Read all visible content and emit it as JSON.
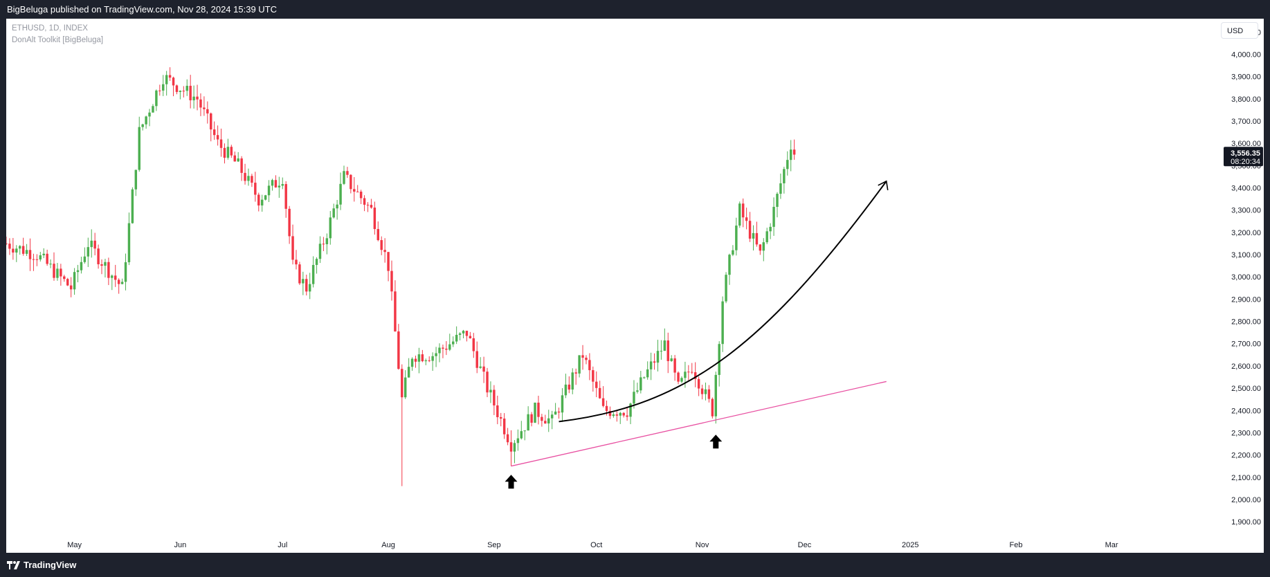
{
  "header": {
    "published": "BigBeluga published on TradingView.com, Nov 28, 2024 15:39 UTC"
  },
  "legend": {
    "symbol": "ETHUSD, 1D, INDEX",
    "indicator": "DonAlt Toolkit [BigBeluga]"
  },
  "currency": "USD",
  "footer": {
    "brand": "TradingView"
  },
  "colors": {
    "up": "#26a69a",
    "up_candle": "#4caf50",
    "down": "#f23645",
    "trendline": "#e84fa1",
    "arrow": "#000000",
    "price_tag": "#131722"
  },
  "chart_data": {
    "type": "candlestick",
    "symbol": "ETHUSD",
    "timeframe": "1D",
    "ylim": [
      1860,
      4160
    ],
    "y_ticks": [
      1900,
      2000,
      2100,
      2200,
      2300,
      2400,
      2500,
      2600,
      2700,
      2800,
      2900,
      3000,
      3100,
      3200,
      3300,
      3400,
      3500,
      3600,
      3700,
      3800,
      3900,
      4000,
      4100
    ],
    "y_tick_labels": [
      "1,900.00",
      "2,000.00",
      "2,100.00",
      "2,200.00",
      "2,300.00",
      "2,400.00",
      "2,500.00",
      "2,600.00",
      "2,700.00",
      "2,800.00",
      "2,900.00",
      "3,000.00",
      "3,100.00",
      "3,200.00",
      "3,300.00",
      "3,400.00",
      "3,500.00",
      "3,600.00",
      "3,700.00",
      "3,800.00",
      "3,900.00",
      "4,000.00",
      "4,100.00"
    ],
    "x_labels": [
      {
        "label": "May",
        "date": "2024-05-01"
      },
      {
        "label": "Jun",
        "date": "2024-06-01"
      },
      {
        "label": "Jul",
        "date": "2024-07-01"
      },
      {
        "label": "Aug",
        "date": "2024-08-01"
      },
      {
        "label": "Sep",
        "date": "2024-09-01"
      },
      {
        "label": "Oct",
        "date": "2024-10-01"
      },
      {
        "label": "Nov",
        "date": "2024-11-01"
      },
      {
        "label": "Dec",
        "date": "2024-12-01"
      },
      {
        "label": "2025",
        "date": "2025-01-01"
      },
      {
        "label": "Feb",
        "date": "2025-02-01"
      },
      {
        "label": "Mar",
        "date": "2025-03-01"
      }
    ],
    "x_range": [
      "2024-04-11",
      "2025-03-30"
    ],
    "last_price": "3,556.35",
    "countdown": "08:20:34",
    "last_price_value": 3556.35,
    "anchors": [
      [
        "2024-04-11",
        3150
      ],
      [
        "2024-04-20",
        3100
      ],
      [
        "2024-04-30",
        2950
      ],
      [
        "2024-05-05",
        3150
      ],
      [
        "2024-05-15",
        2950
      ],
      [
        "2024-05-20",
        3650
      ],
      [
        "2024-05-27",
        3900
      ],
      [
        "2024-06-06",
        3800
      ],
      [
        "2024-06-12",
        3600
      ],
      [
        "2024-06-18",
        3500
      ],
      [
        "2024-06-24",
        3350
      ],
      [
        "2024-07-01",
        3450
      ],
      [
        "2024-07-04",
        3050
      ],
      [
        "2024-07-08",
        2950
      ],
      [
        "2024-07-14",
        3200
      ],
      [
        "2024-07-19",
        3450
      ],
      [
        "2024-07-27",
        3300
      ],
      [
        "2024-08-01",
        3050
      ],
      [
        "2024-08-04",
        2600
      ],
      [
        "2024-08-05",
        2450
      ],
      [
        "2024-08-08",
        2650
      ],
      [
        "2024-08-14",
        2650
      ],
      [
        "2024-08-24",
        2750
      ],
      [
        "2024-08-30",
        2500
      ],
      [
        "2024-09-06",
        2250
      ],
      [
        "2024-09-13",
        2400
      ],
      [
        "2024-09-18",
        2350
      ],
      [
        "2024-09-27",
        2650
      ],
      [
        "2024-10-03",
        2400
      ],
      [
        "2024-10-10",
        2400
      ],
      [
        "2024-10-15",
        2550
      ],
      [
        "2024-10-21",
        2700
      ],
      [
        "2024-10-25",
        2500
      ],
      [
        "2024-10-29",
        2600
      ],
      [
        "2024-11-04",
        2400
      ],
      [
        "2024-11-07",
        2900
      ],
      [
        "2024-11-10",
        3150
      ],
      [
        "2024-11-12",
        3300
      ],
      [
        "2024-11-18",
        3100
      ],
      [
        "2024-11-22",
        3300
      ],
      [
        "2024-11-27",
        3600
      ],
      [
        "2024-11-28",
        3556
      ]
    ],
    "annotations": [
      {
        "type": "trendline",
        "from": [
          "2024-09-06",
          2150
        ],
        "to": [
          "2024-12-25",
          2530
        ]
      },
      {
        "type": "curved-arrow",
        "points": [
          [
            "2024-09-20",
            2350
          ],
          [
            "2024-10-28",
            2420
          ],
          [
            "2024-11-20",
            2700
          ],
          [
            "2024-12-25",
            3430
          ]
        ]
      },
      {
        "type": "up-arrow",
        "at": [
          "2024-09-06",
          2080
        ]
      },
      {
        "type": "up-arrow",
        "at": [
          "2024-11-05",
          2260
        ]
      }
    ]
  }
}
